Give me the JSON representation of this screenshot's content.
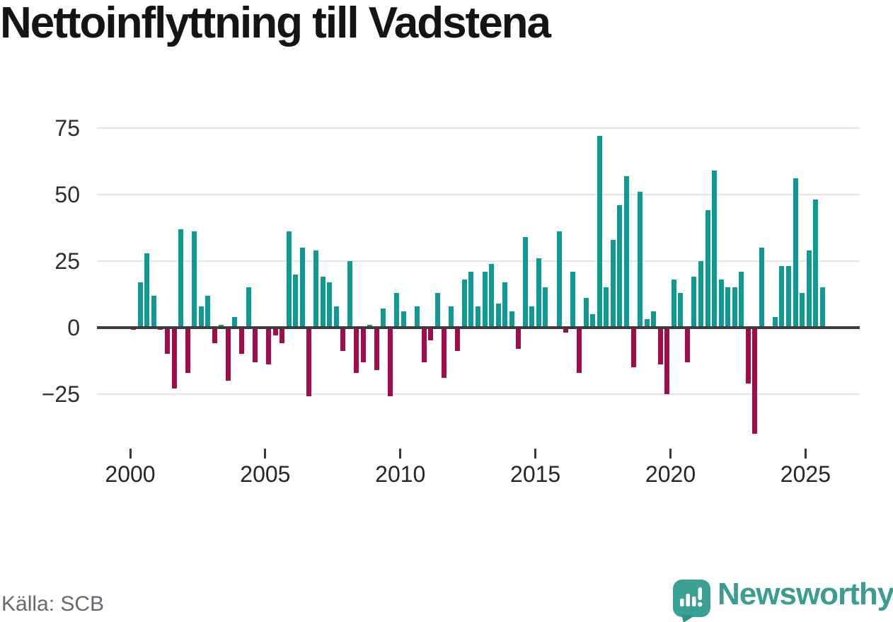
{
  "title": "Nettoinflyttning till Vadstena",
  "source": "Källa: SCB",
  "branding": {
    "wordmark": "Newsworthy",
    "icon": "speech-bubble-with-bar-chart-and-exclamation"
  },
  "colors": {
    "positive_bar": "#0e9a92",
    "negative_bar": "#a10c49",
    "zero_axis": "#3c3c3c",
    "gridline": "#e5e5e5",
    "title_text": "#141414",
    "axis_label_text": "#2d2d2d",
    "source_text": "#68686f",
    "brand_teal": "#3b9c92",
    "background": "#ffffff"
  },
  "chart_data": {
    "type": "bar",
    "title": "Nettoinflyttning till Vadstena",
    "x_interval": "quarter",
    "x_start": "2000-Q1",
    "x_end": "2025-Q3",
    "x_tick_labels": [
      "2000",
      "2005",
      "2010",
      "2015",
      "2020",
      "2025"
    ],
    "y_tick_labels": [
      "75",
      "50",
      "25",
      "0",
      "−25"
    ],
    "y_gridline_values": [
      75,
      50,
      25,
      0,
      -25
    ],
    "ylim": [
      -42,
      80
    ],
    "grid": "horizontal",
    "legend": "none",
    "positive_color": "#0e9a92",
    "negative_color": "#a10c49",
    "values_by_year": {
      "2000": [
        -1,
        17,
        28,
        12
      ],
      "2001": [
        -1,
        -10,
        -23,
        37
      ],
      "2002": [
        -17,
        36,
        8,
        12
      ],
      "2003": [
        -6,
        1,
        -20,
        4
      ],
      "2004": [
        -10,
        15,
        -13,
        0
      ],
      "2005": [
        -14,
        -3,
        -6,
        36
      ],
      "2006": [
        20,
        30,
        -26,
        29
      ],
      "2007": [
        19,
        17,
        8,
        -9
      ],
      "2008": [
        25,
        -17,
        -13,
        1
      ],
      "2009": [
        -16,
        7,
        -26,
        13
      ],
      "2010": [
        6,
        0,
        8,
        -13
      ],
      "2011": [
        -5,
        13,
        -19,
        8
      ],
      "2012": [
        -9,
        18,
        21,
        8
      ],
      "2013": [
        21,
        24,
        9,
        17
      ],
      "2014": [
        6,
        -8,
        34,
        8
      ],
      "2015": [
        26,
        15,
        0,
        36
      ],
      "2016": [
        -2,
        21,
        -17,
        11
      ],
      "2017": [
        5,
        72,
        15,
        33
      ],
      "2018": [
        46,
        57,
        -15,
        51
      ],
      "2019": [
        3,
        6,
        -14,
        -25
      ],
      "2020": [
        18,
        13,
        -13,
        19
      ],
      "2021": [
        25,
        44,
        59,
        18
      ],
      "2022": [
        15,
        15,
        21,
        -21
      ],
      "2023": [
        -40,
        30,
        0,
        4
      ],
      "2024": [
        23,
        23,
        56,
        13
      ],
      "2025": [
        29,
        48,
        15
      ]
    }
  }
}
